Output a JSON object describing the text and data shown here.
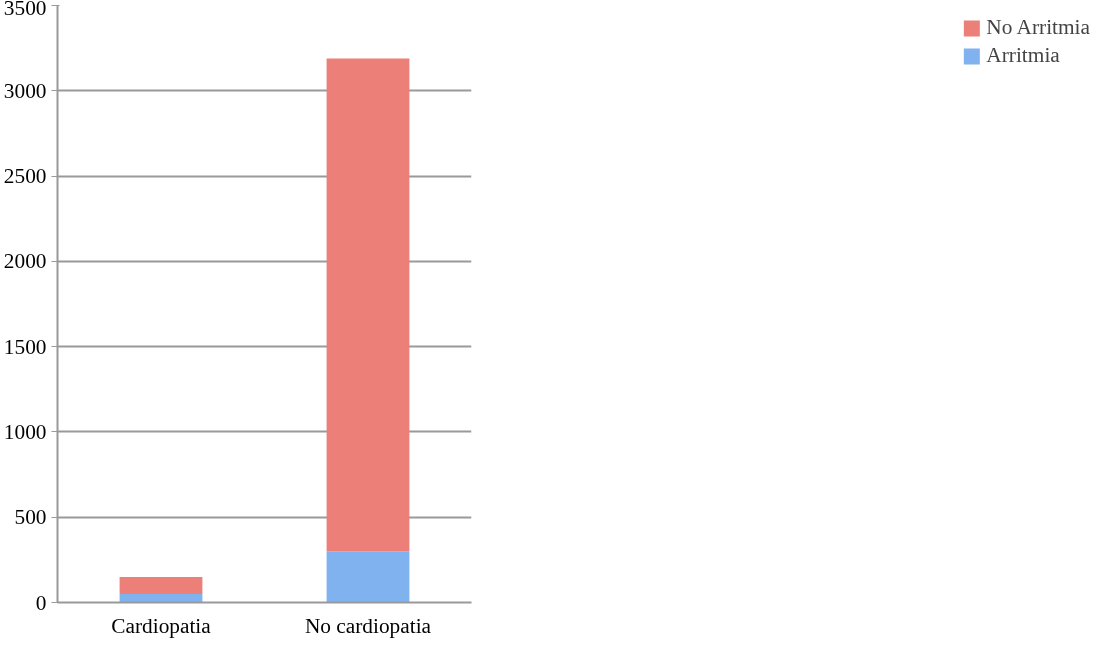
{
  "chart_data": {
    "type": "bar",
    "stacked": true,
    "categories": [
      "Cardiopatia",
      "No cardiopatia"
    ],
    "series": [
      {
        "name": "Arritmia",
        "color": "#7fb2ee",
        "values": [
          50,
          300
        ]
      },
      {
        "name": "No Arritmia",
        "color": "#ec7f78",
        "values": [
          100,
          2890
        ]
      }
    ],
    "ylim": [
      0,
      3500
    ],
    "yticks": [
      0,
      500,
      1000,
      1500,
      2000,
      2500,
      3000,
      3500
    ],
    "grid": "y",
    "legend": "right"
  }
}
